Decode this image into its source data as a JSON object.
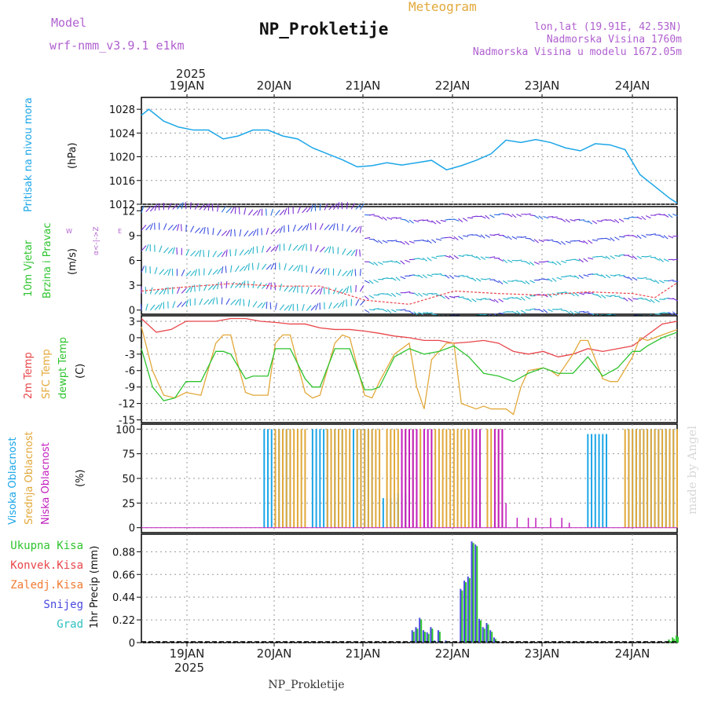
{
  "header": {
    "model_label": "Model",
    "model_name": "wrf-nmm_v3.9.1 e1km",
    "meteogram": "Meteogram",
    "station": "NP_Prokletije",
    "lonlat": "lon,lat (19.91E, 42.53N)",
    "elevation": "Nadmorska Visina 1760m",
    "model_elevation": "Nadmorska Visina u modelu 1672.05m",
    "footer_station": "NP_Prokletije",
    "watermark": "made by Angel",
    "year": "2025"
  },
  "colors": {
    "pressure": "#1ca6e8",
    "t2m": "#e8454a",
    "sfc": "#e2a83a",
    "dew": "#2ec42e",
    "high_cloud": "#1ca6e8",
    "mid_cloud": "#e2a83a",
    "low_cloud": "#c21fbf",
    "total_precip": "#2ec42e",
    "conv_precip": "#e8454a",
    "frozen_precip": "#f07a30",
    "snow": "#4848e0",
    "hail": "#30c0c0",
    "purple_text": "#b060d0"
  },
  "time_axis": {
    "top_labels": [
      "19JAN",
      "20JAN",
      "21JAN",
      "22JAN",
      "23JAN",
      "24JAN"
    ],
    "bottom_labels": [
      "19JAN",
      "20JAN",
      "21JAN",
      "22JAN",
      "23JAN",
      "24JAN"
    ],
    "year": "2025"
  },
  "wind_compass": {
    "n": "N",
    "s": "S",
    "e": "E",
    "w": "W",
    "pretext": "W",
    "label": "α<-|->Z"
  },
  "chart_data": [
    {
      "id": "pressure",
      "type": "line",
      "ylabel_left": "Pritisak na nivou mora",
      "ylabel_unit": "(hPa)",
      "yticks": [
        "1012",
        "1016",
        "1020",
        "1024",
        "1028"
      ],
      "ylim": [
        1012,
        1030
      ],
      "xlim": [
        0,
        144
      ],
      "series": [
        {
          "x": [
            0,
            2,
            6,
            10,
            14,
            18,
            22,
            26,
            30,
            34,
            38,
            42,
            46,
            50,
            54,
            58,
            62,
            66,
            70,
            74,
            78,
            82,
            86,
            90,
            94,
            98,
            102,
            106,
            110,
            114,
            118,
            122,
            126,
            130,
            134,
            138,
            142,
            144
          ],
          "y": [
            1027,
            1028,
            1026,
            1025,
            1024.5,
            1024.5,
            1023,
            1023.5,
            1024.5,
            1024.5,
            1023.5,
            1023,
            1021.5,
            1020.5,
            1019.5,
            1018.3,
            1018.5,
            1019,
            1018.6,
            1019,
            1019.4,
            1017.8,
            1018.5,
            1019.4,
            1020.5,
            1022.8,
            1022.4,
            1022.9,
            1022.4,
            1021.5,
            1021,
            1022.2,
            1022,
            1021.2,
            1017,
            1015,
            1013,
            1012.2
          ]
        }
      ]
    },
    {
      "id": "wind",
      "type": "line",
      "ylabel_left": "10m Vjetar",
      "ylabel_left2": "Brzina i Pravac",
      "ylabel_unit": "(m/s)",
      "yticks": [
        "0",
        "3",
        "6",
        "9",
        "12"
      ],
      "ylim": [
        -0.5,
        12.5
      ],
      "xlim": [
        0,
        144
      ],
      "series": [
        {
          "name": "",
          "x": [
            0,
            12,
            24,
            36,
            48,
            60,
            72,
            84,
            96,
            108,
            120,
            132,
            138,
            144
          ],
          "y": [
            2.3,
            2.8,
            3.2,
            2.9,
            2.9,
            1.2,
            0.7,
            2.3,
            2.0,
            1.8,
            2.2,
            2.0,
            1.5,
            3.3
          ]
        }
      ]
    },
    {
      "id": "temperature",
      "type": "line",
      "ylabel_left": "2m Temp",
      "ylabel_left2": "SFC Temp",
      "ylabel_left3": "dewpt Temp",
      "ylabel_unit": "(C)",
      "yticks": [
        "-15",
        "-12",
        "-9",
        "-6",
        "-3",
        "0",
        "3"
      ],
      "ylim": [
        -15.5,
        4
      ],
      "xlim": [
        0,
        144
      ],
      "series": [
        {
          "name": "2m Temp",
          "x": [
            0,
            4,
            8,
            12,
            16,
            20,
            24,
            28,
            32,
            36,
            40,
            44,
            48,
            52,
            56,
            60,
            64,
            68,
            72,
            76,
            80,
            84,
            88,
            92,
            96,
            100,
            104,
            108,
            112,
            116,
            120,
            124,
            128,
            132,
            136,
            140,
            144
          ],
          "y": [
            3.5,
            1.0,
            1.5,
            3.0,
            3.0,
            3.0,
            3.5,
            3.5,
            3.0,
            2.8,
            2.5,
            2.5,
            1.8,
            1.5,
            1.5,
            1.2,
            0.8,
            0.3,
            0.0,
            -0.5,
            -0.5,
            -1.0,
            -0.8,
            -0.5,
            -1.0,
            -2.5,
            -3.0,
            -2.5,
            -3.5,
            -3.0,
            -2.0,
            -2.5,
            -2.0,
            -1.5,
            0.5,
            2.5,
            3.0
          ]
        },
        {
          "name": "SFC Temp",
          "x": [
            0,
            3,
            6,
            9,
            12,
            16,
            20,
            22,
            24,
            26,
            28,
            30,
            34,
            36,
            38,
            40,
            44,
            46,
            48,
            52,
            54,
            56,
            60,
            62,
            64,
            68,
            72,
            74,
            76,
            78,
            82,
            84,
            86,
            90,
            92,
            94,
            98,
            100,
            102,
            104,
            108,
            110,
            112,
            116,
            118,
            120,
            124,
            126,
            128,
            132,
            134,
            136,
            140,
            144
          ],
          "y": [
            2.0,
            -6.0,
            -10.5,
            -11.0,
            -10.0,
            -10.5,
            -1.0,
            0.5,
            0.5,
            -5.0,
            -10.0,
            -10.5,
            -10.5,
            -1.0,
            0.5,
            0.5,
            -10.0,
            -11.0,
            -10.5,
            -1.0,
            0.5,
            0.0,
            -10.5,
            -11.0,
            -8.0,
            -3.0,
            -1.0,
            -9.0,
            -13.0,
            -4.0,
            -1.0,
            -1.0,
            -12.0,
            -13.0,
            -12.5,
            -13.0,
            -13.0,
            -14.0,
            -9.0,
            -6.0,
            -5.5,
            -6.0,
            -7.0,
            -3.0,
            -0.5,
            -0.5,
            -7.5,
            -8.0,
            -8.0,
            -3.5,
            0.0,
            -0.5,
            0.5,
            1.5
          ]
        },
        {
          "name": "dewpt Temp",
          "x": [
            0,
            3,
            6,
            9,
            12,
            16,
            20,
            22,
            24,
            28,
            30,
            34,
            36,
            38,
            40,
            44,
            46,
            48,
            52,
            54,
            56,
            60,
            62,
            64,
            68,
            72,
            76,
            80,
            84,
            88,
            92,
            96,
            100,
            104,
            108,
            112,
            116,
            120,
            124,
            128,
            132,
            134,
            136,
            140,
            144
          ],
          "y": [
            -2.0,
            -9.0,
            -11.5,
            -11.0,
            -8.0,
            -8.0,
            -2.5,
            -2.5,
            -3.0,
            -7.5,
            -7.0,
            -7.0,
            -2.0,
            -2.0,
            -2.0,
            -7.5,
            -9.0,
            -9.0,
            -2.0,
            -2.0,
            -2.0,
            -9.5,
            -9.5,
            -9.0,
            -3.5,
            -2.0,
            -3.0,
            -2.5,
            -1.5,
            -3.5,
            -6.5,
            -7.0,
            -8.0,
            -6.5,
            -5.5,
            -6.5,
            -6.5,
            -3.5,
            -7.0,
            -5.5,
            -2.5,
            -2.5,
            -1.5,
            0.0,
            1.0
          ]
        }
      ]
    },
    {
      "id": "clouds",
      "type": "bar",
      "ylabel_left": "Visoka Oblacnost",
      "ylabel_left2": "Srednja Oblacnost",
      "ylabel_left3": "Niska  Oblacnost",
      "ylabel_unit": "(%)",
      "yticks": [
        "0",
        "25",
        "50",
        "75",
        "100"
      ],
      "ylim": [
        -5,
        105
      ],
      "xlim": [
        0,
        144
      ],
      "series": [
        {
          "name": "high",
          "segments": [
            [
              33,
              40,
              100
            ],
            [
              46,
              50,
              100
            ],
            [
              52,
              54,
              100
            ],
            [
              57,
              60,
              100
            ],
            [
              61,
              62,
              100
            ],
            [
              65,
              70,
              30
            ],
            [
              68,
              72,
              35
            ],
            [
              120,
              125,
              95
            ],
            [
              131,
              144,
              100
            ]
          ]
        },
        {
          "name": "mid",
          "segments": [
            [
              36,
              44,
              100
            ],
            [
              50,
              56,
              100
            ],
            [
              58,
              64,
              100
            ],
            [
              66,
              75,
              100
            ],
            [
              78,
              90,
              100
            ],
            [
              93,
              97,
              100
            ],
            [
              130,
              144,
              100
            ]
          ]
        },
        {
          "name": "low",
          "segments": [
            [
              70,
              74,
              100
            ],
            [
              76,
              78,
              100
            ],
            [
              89,
              91,
              100
            ],
            [
              95,
              97,
              100
            ]
          ],
          "sparse": [
            [
              98,
              25
            ],
            [
              101,
              10
            ],
            [
              104,
              10
            ],
            [
              106,
              10
            ],
            [
              110,
              10
            ],
            [
              113,
              10
            ],
            [
              115,
              5
            ]
          ]
        }
      ]
    },
    {
      "id": "precip",
      "type": "bar",
      "ylabel_left": "1hr Precip (mm)",
      "legend": [
        "Ukupna Kisa",
        "Konvek.Kisa",
        "Zaledj.Kisa",
        "Snijeg",
        "Grad"
      ],
      "yticks": [
        "0",
        "0.22",
        "0.44",
        "0.66",
        "0.88"
      ],
      "ylim": [
        0,
        1.05
      ],
      "xlim": [
        0,
        144
      ],
      "series": [
        {
          "name": "Snijeg",
          "x": [
            73,
            74,
            75,
            76,
            77,
            78,
            79,
            80,
            82,
            86,
            87,
            88,
            89,
            90,
            91,
            92,
            93,
            94,
            95
          ],
          "y": [
            0.12,
            0.15,
            0.24,
            0.12,
            0.1,
            0.15,
            0.02,
            0.12,
            0.02,
            0.52,
            0.6,
            0.64,
            0.98,
            0.95,
            0.23,
            0.15,
            0.19,
            0.12,
            0.05
          ]
        },
        {
          "name": "Ukupna Kisa",
          "x": [
            142,
            143,
            144
          ],
          "y": [
            0.03,
            0.05,
            0.07
          ]
        }
      ]
    }
  ]
}
